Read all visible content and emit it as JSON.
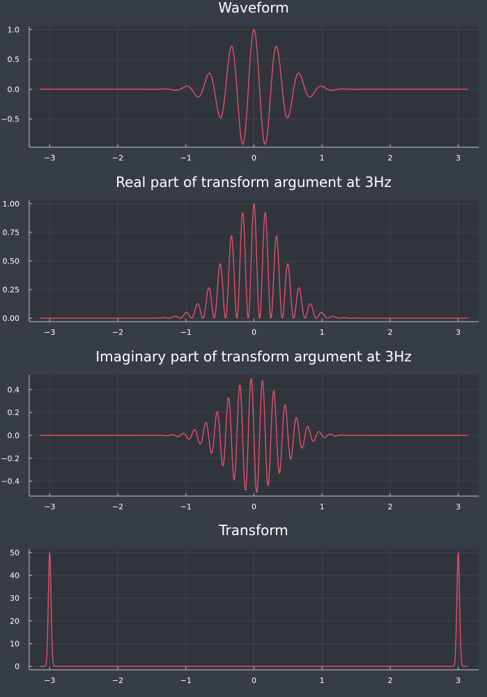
{
  "colors": {
    "background": "#373d46",
    "plot_background": "#30343b",
    "series": "#e8506a"
  },
  "chart_data": [
    {
      "type": "line",
      "title": "Waveform",
      "xlabel": "",
      "ylabel": "",
      "xlim": [
        -3.3,
        3.3
      ],
      "ylim": [
        -0.97,
        1.05
      ],
      "xticks": [
        -3,
        -2,
        -1,
        0,
        1,
        2,
        3
      ],
      "xtick_labels": [
        "−3",
        "−2",
        "−1",
        "0",
        "1",
        "2",
        "3"
      ],
      "yticks": [
        1.0,
        0.5,
        0.0,
        -0.5
      ],
      "ytick_labels": [
        "1.0",
        "0.5",
        "0.0",
        "−0.5"
      ],
      "grid": true,
      "legend": false,
      "series": [
        {
          "x": [
            -3.1416,
            -1.6,
            -1.2,
            -1.0,
            -0.8,
            -0.67,
            -0.5,
            -0.33,
            -0.17,
            0.0,
            0.17,
            0.33,
            0.5,
            0.67,
            0.8,
            1.0,
            1.2,
            1.6,
            3.1416
          ],
          "y": [
            0.0,
            0.0,
            0.0,
            0.04,
            -0.1,
            0.25,
            -0.46,
            0.71,
            -0.9,
            1.0,
            -0.9,
            0.71,
            -0.46,
            0.25,
            -0.1,
            0.04,
            0.0,
            0.0,
            0.0
          ]
        }
      ]
    },
    {
      "type": "line",
      "title": "Real part of transform argument at 3Hz",
      "xlabel": "",
      "ylabel": "",
      "xlim": [
        -3.3,
        3.3
      ],
      "ylim": [
        -0.03,
        1.03
      ],
      "xticks": [
        -3,
        -2,
        -1,
        0,
        1,
        2,
        3
      ],
      "xtick_labels": [
        "−3",
        "−2",
        "−1",
        "0",
        "1",
        "2",
        "3"
      ],
      "yticks": [
        1.0,
        0.75,
        0.5,
        0.25,
        0.0
      ],
      "ytick_labels": [
        "1.00",
        "0.75",
        "0.50",
        "0.25",
        "0.00"
      ],
      "grid": true,
      "legend": false,
      "series": [
        {
          "x": [
            -3.1416,
            -1.3,
            -1.0,
            -0.83,
            -0.67,
            -0.5,
            -0.33,
            -0.17,
            0.0,
            0.17,
            0.33,
            0.5,
            0.67,
            0.83,
            1.0,
            1.3,
            3.1416
          ],
          "y": [
            0.0,
            0.0,
            0.04,
            0.11,
            0.25,
            0.46,
            0.71,
            0.91,
            1.0,
            0.91,
            0.71,
            0.46,
            0.25,
            0.11,
            0.04,
            0.0,
            0.0
          ]
        }
      ]
    },
    {
      "type": "line",
      "title": "Imaginary part of transform argument at 3Hz",
      "xlabel": "",
      "ylabel": "",
      "xlim": [
        -3.3,
        3.3
      ],
      "ylim": [
        -0.53,
        0.53
      ],
      "xticks": [
        -3,
        -2,
        -1,
        0,
        1,
        2,
        3
      ],
      "xtick_labels": [
        "−3",
        "−2",
        "−1",
        "0",
        "1",
        "2",
        "3"
      ],
      "yticks": [
        0.4,
        0.2,
        0.0,
        -0.2,
        -0.4
      ],
      "ytick_labels": [
        "0.4",
        "0.2",
        "0.0",
        "−0.2",
        "−0.4"
      ],
      "grid": true,
      "legend": false,
      "series": [
        {
          "x": [
            -3.1416,
            -1.3,
            -1.0,
            -0.67,
            -0.33,
            0.0,
            0.33,
            0.67,
            1.0,
            1.3,
            3.1416
          ],
          "y": [
            0.0,
            0.0,
            0.03,
            0.12,
            0.35,
            0.5,
            0.35,
            0.12,
            0.03,
            0.0,
            0.0
          ]
        }
      ]
    },
    {
      "type": "line",
      "title": "Transform",
      "xlabel": "",
      "ylabel": "",
      "xlim": [
        -3.3,
        3.3
      ],
      "ylim": [
        -1.5,
        51.5
      ],
      "xticks": [
        -3,
        -2,
        -1,
        0,
        1,
        2,
        3
      ],
      "xtick_labels": [
        "−3",
        "−2",
        "−1",
        "0",
        "1",
        "2",
        "3"
      ],
      "yticks": [
        50,
        40,
        30,
        20,
        10,
        0
      ],
      "ytick_labels": [
        "50",
        "40",
        "30",
        "20",
        "10",
        "0"
      ],
      "grid": true,
      "legend": false,
      "series": [
        {
          "x": [
            -3.1416,
            -3.06,
            -3.0,
            -2.94,
            -2.8,
            0.0,
            2.8,
            2.94,
            3.0,
            3.06,
            3.1416
          ],
          "y": [
            0.0,
            2.0,
            50.0,
            2.0,
            0.0,
            0.0,
            0.0,
            2.0,
            50.0,
            2.0,
            0.0
          ]
        }
      ]
    }
  ]
}
